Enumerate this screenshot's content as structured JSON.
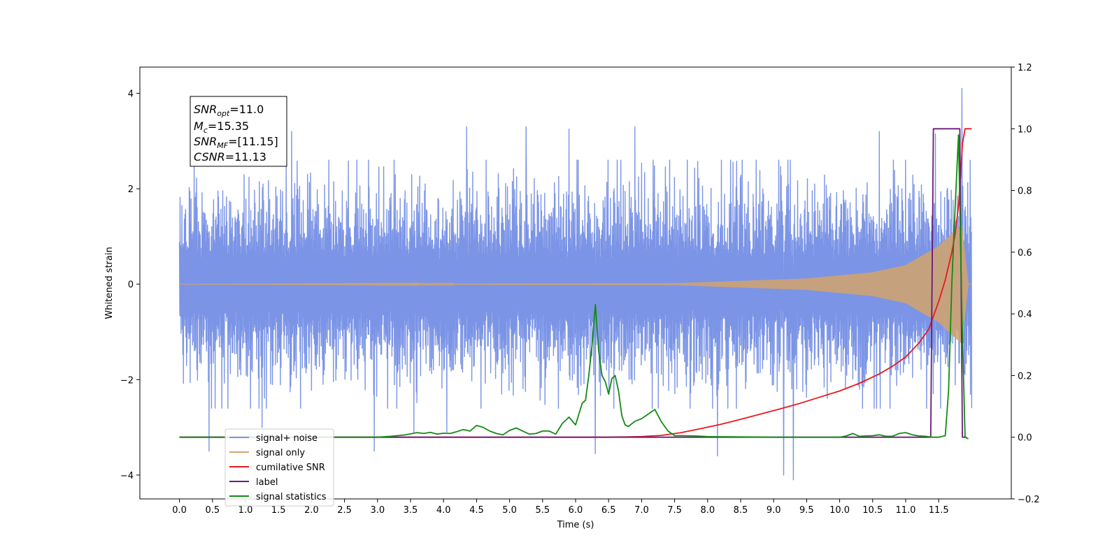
{
  "chart_data": {
    "type": "line",
    "xlabel": "Time (s)",
    "ylabel": "Whitened strain",
    "xlim": [
      -0.6,
      12.6
    ],
    "ylim": [
      -4.5,
      4.55
    ],
    "y2lim": [
      -0.2,
      1.2
    ],
    "x_ticks": [
      0.0,
      0.5,
      1.0,
      1.5,
      2.0,
      2.5,
      3.0,
      3.5,
      4.0,
      4.5,
      5.0,
      5.5,
      6.0,
      6.5,
      7.0,
      7.5,
      8.0,
      8.5,
      9.0,
      9.5,
      10.0,
      10.5,
      11.0,
      11.5
    ],
    "x_tick_labels": [
      "0.0",
      "0.5",
      "1.0",
      "1.5",
      "2.0",
      "2.5",
      "3.0",
      "3.5",
      "4.0",
      "4.5",
      "5.0",
      "5.5",
      "6.0",
      "6.5",
      "7.0",
      "7.5",
      "8.0",
      "8.5",
      "9.0",
      "9.5",
      "10.0",
      "10.5",
      "11.0",
      "11.5"
    ],
    "y_ticks": [
      4,
      2,
      0,
      -2,
      -4
    ],
    "y_tick_labels": [
      "4",
      "2",
      "0",
      "−2",
      "−4"
    ],
    "y2_ticks": [
      1.2,
      1.0,
      0.8,
      0.6,
      0.4,
      0.2,
      0.0,
      -0.2
    ],
    "y2_tick_labels": [
      "1.2",
      "1.0",
      "0.8",
      "0.6",
      "0.4",
      "0.2",
      "0.0",
      "−0.2"
    ],
    "legend_position": "lower-left",
    "annotation": {
      "snr_opt": {
        "name": "SNR",
        "sub": "opt",
        "value": "=11.0"
      },
      "mc": {
        "name": "M",
        "sub": "c",
        "value": "=15.35"
      },
      "snr_mf": {
        "name": "SNR",
        "sub": "MF",
        "value": "=[11.15]"
      },
      "csnr": {
        "name": "CSNR",
        "sub": "",
        "value": "=11.13"
      }
    },
    "series": [
      {
        "name": "signal+ noise",
        "axis": "left",
        "color": "#7b94e6",
        "kind": "noise",
        "x_range": [
          0.0,
          12.0
        ],
        "amplitude_typical": 1.4,
        "spikes": [
          [
            0.45,
            -3.5
          ],
          [
            1.25,
            -3.0
          ],
          [
            1.7,
            3.2
          ],
          [
            2.95,
            -3.5
          ],
          [
            3.55,
            -3.1
          ],
          [
            4.05,
            -3.1
          ],
          [
            4.35,
            3.3
          ],
          [
            5.25,
            3.3
          ],
          [
            5.9,
            3.25
          ],
          [
            6.3,
            -3.55
          ],
          [
            6.9,
            3.3
          ],
          [
            8.15,
            -3.6
          ],
          [
            9.15,
            -4.0
          ],
          [
            9.3,
            -4.1
          ],
          [
            10.6,
            3.2
          ],
          [
            11.45,
            3.15
          ],
          [
            11.85,
            4.1
          ]
        ]
      },
      {
        "name": "signal only",
        "axis": "left",
        "color": "#d4a36a",
        "kind": "chirp",
        "x_range": [
          0.0,
          12.0
        ],
        "envelope": [
          [
            0.0,
            0.0
          ],
          [
            7.5,
            0.02
          ],
          [
            9.5,
            0.12
          ],
          [
            10.5,
            0.25
          ],
          [
            11.0,
            0.4
          ],
          [
            11.5,
            0.8
          ],
          [
            11.85,
            1.25
          ],
          [
            11.95,
            0.0
          ]
        ]
      },
      {
        "name": "cumilative SNR",
        "axis": "right",
        "color": "#e8191c",
        "x": [
          0.0,
          6.5,
          7.0,
          7.3,
          7.6,
          7.9,
          8.2,
          8.5,
          8.8,
          9.1,
          9.4,
          9.7,
          10.0,
          10.3,
          10.6,
          10.8,
          11.0,
          11.2,
          11.35,
          11.5,
          11.6,
          11.7,
          11.75,
          11.8,
          11.83,
          11.86,
          11.9,
          12.0
        ],
        "values": [
          0.0,
          0.0,
          0.002,
          0.006,
          0.015,
          0.028,
          0.042,
          0.058,
          0.075,
          0.092,
          0.11,
          0.13,
          0.15,
          0.175,
          0.205,
          0.23,
          0.26,
          0.305,
          0.35,
          0.44,
          0.51,
          0.6,
          0.66,
          0.75,
          0.84,
          0.95,
          1.0,
          1.0
        ]
      },
      {
        "name": "label",
        "axis": "right",
        "color": "#6a1b7a",
        "x": [
          0.0,
          11.38,
          11.42,
          11.82,
          11.86,
          11.92
        ],
        "values": [
          0.0,
          0.0,
          1.0,
          1.0,
          0.0,
          0.0
        ]
      },
      {
        "name": "signal statistics",
        "axis": "right",
        "color": "#138a13",
        "x": [
          0.0,
          3.0,
          3.2,
          3.4,
          3.6,
          3.7,
          3.8,
          3.9,
          4.0,
          4.1,
          4.2,
          4.3,
          4.4,
          4.5,
          4.6,
          4.7,
          4.8,
          4.9,
          5.0,
          5.1,
          5.2,
          5.3,
          5.4,
          5.5,
          5.6,
          5.7,
          5.8,
          5.9,
          6.0,
          6.1,
          6.15,
          6.2,
          6.25,
          6.3,
          6.35,
          6.4,
          6.45,
          6.5,
          6.55,
          6.6,
          6.65,
          6.7,
          6.75,
          6.8,
          6.9,
          7.0,
          7.1,
          7.2,
          7.3,
          7.4,
          7.5,
          7.6,
          7.8,
          8.0,
          9.0,
          10.0,
          10.1,
          10.2,
          10.3,
          10.4,
          10.5,
          10.6,
          10.7,
          10.8,
          10.9,
          11.0,
          11.1,
          11.2,
          11.3,
          11.4,
          11.5,
          11.6,
          11.65,
          11.7,
          11.75,
          11.8,
          11.85,
          11.9,
          11.95
        ],
        "values": [
          0.0,
          0.0,
          0.003,
          0.007,
          0.015,
          0.012,
          0.016,
          0.01,
          0.013,
          0.012,
          0.018,
          0.025,
          0.02,
          0.038,
          0.032,
          0.02,
          0.012,
          0.008,
          0.022,
          0.03,
          0.02,
          0.01,
          0.012,
          0.02,
          0.02,
          0.01,
          0.045,
          0.065,
          0.04,
          0.11,
          0.12,
          0.2,
          0.3,
          0.43,
          0.28,
          0.2,
          0.18,
          0.14,
          0.19,
          0.2,
          0.15,
          0.07,
          0.04,
          0.035,
          0.052,
          0.06,
          0.075,
          0.09,
          0.05,
          0.02,
          0.005,
          0.005,
          0.004,
          0.002,
          0.0,
          0.0,
          0.004,
          0.012,
          0.003,
          0.004,
          0.005,
          0.008,
          0.003,
          0.003,
          0.012,
          0.015,
          0.008,
          0.004,
          0.003,
          0.0,
          0.0,
          0.005,
          0.15,
          0.5,
          0.75,
          0.98,
          0.42,
          0.0,
          -0.005
        ]
      }
    ]
  }
}
